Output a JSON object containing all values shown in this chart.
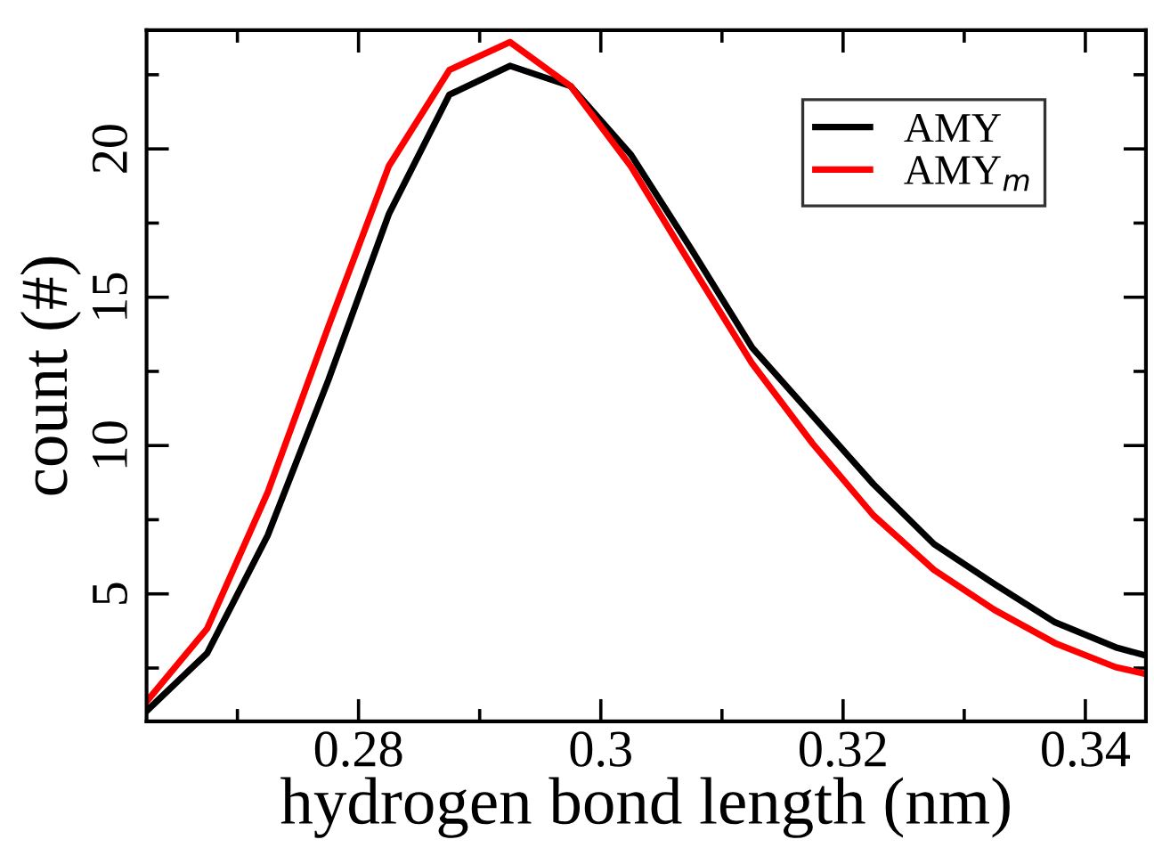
{
  "chart_data": {
    "type": "line",
    "xlabel": "hydrogen bond length (nm)",
    "ylabel": "count (#)",
    "xlim": [
      0.2625,
      0.345
    ],
    "xticks": [
      0.28,
      {
        "value": 0.3,
        "label": "0.3"
      },
      0.32,
      0.34
    ],
    "ylim": [
      0.7,
      24
    ],
    "yticks": [
      5,
      10,
      15,
      20
    ],
    "x": [
      0.2625,
      0.2675,
      0.2725,
      0.2775,
      0.2825,
      0.2875,
      0.2925,
      0.2975,
      0.3025,
      0.3075,
      0.3125,
      0.3175,
      0.3225,
      0.3275,
      0.3325,
      0.3375,
      0.3425,
      0.345
    ],
    "series": [
      {
        "name": "AMY",
        "color": "#000000",
        "values": [
          1.05,
          3.0,
          6.97,
          12.2,
          17.8,
          21.83,
          22.8,
          22.12,
          19.8,
          16.6,
          13.3,
          11.0,
          8.7,
          6.68,
          5.33,
          4.04,
          3.2,
          2.92
        ]
      },
      {
        "name": "AMY$_{m}$",
        "color": "#ff0000",
        "values": [
          1.37,
          3.83,
          8.42,
          14.0,
          19.42,
          22.66,
          23.6,
          22.12,
          19.4,
          16.05,
          12.76,
          10.06,
          7.65,
          5.81,
          4.46,
          3.34,
          2.53,
          2.3
        ]
      }
    ],
    "legend": "top right",
    "grid": false,
    "marker": "none",
    "line_style": "solid"
  }
}
